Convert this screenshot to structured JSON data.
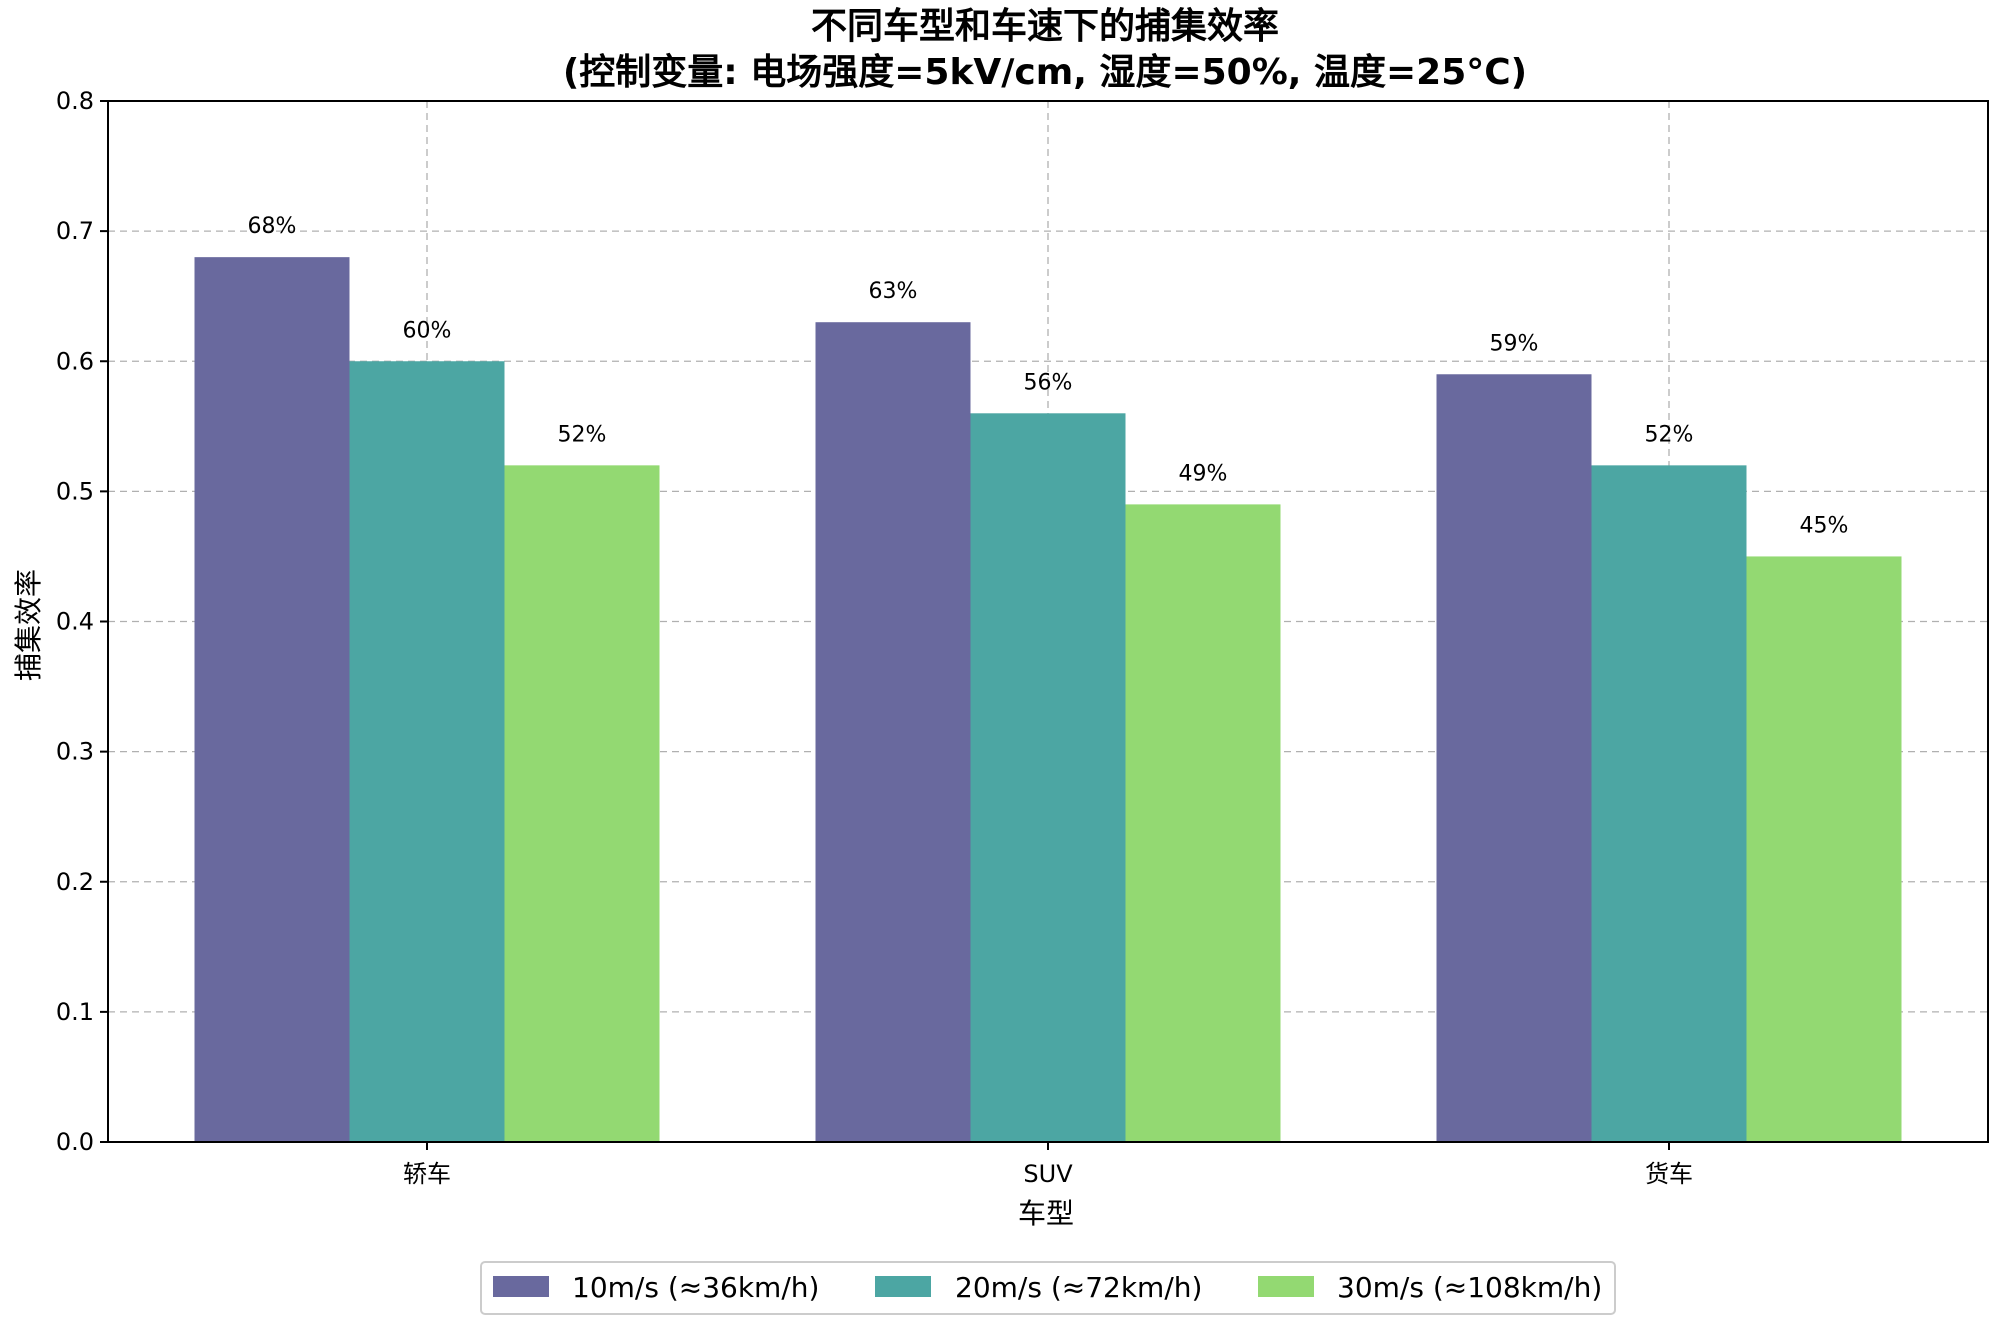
{
  "chart_data": {
    "type": "bar",
    "title": "不同车型和车速下的捕集效率",
    "subtitle": "(控制变量: 电场强度=5kV/cm, 湿度=50%, 温度=25°C)",
    "xlabel": "车型",
    "ylabel": "捕集效率",
    "categories": [
      "轿车",
      "SUV",
      "货车"
    ],
    "series": [
      {
        "name": "10m/s (≈36km/h)",
        "values": [
          0.68,
          0.63,
          0.59
        ],
        "labels": [
          "68%",
          "63%",
          "59%"
        ],
        "color": "#69699E"
      },
      {
        "name": "20m/s (≈72km/h)",
        "values": [
          0.6,
          0.56,
          0.52
        ],
        "labels": [
          "60%",
          "56%",
          "52%"
        ],
        "color": "#4CA6A3"
      },
      {
        "name": "30m/s (≈108km/h)",
        "values": [
          0.52,
          0.49,
          0.45
        ],
        "labels": [
          "52%",
          "49%",
          "45%"
        ],
        "color": "#93D972"
      }
    ],
    "ylim": [
      0,
      0.8
    ],
    "yticks": [
      "0.0",
      "0.1",
      "0.2",
      "0.3",
      "0.4",
      "0.5",
      "0.6",
      "0.7",
      "0.8"
    ],
    "grid": true,
    "legend_position": "bottom-center"
  }
}
